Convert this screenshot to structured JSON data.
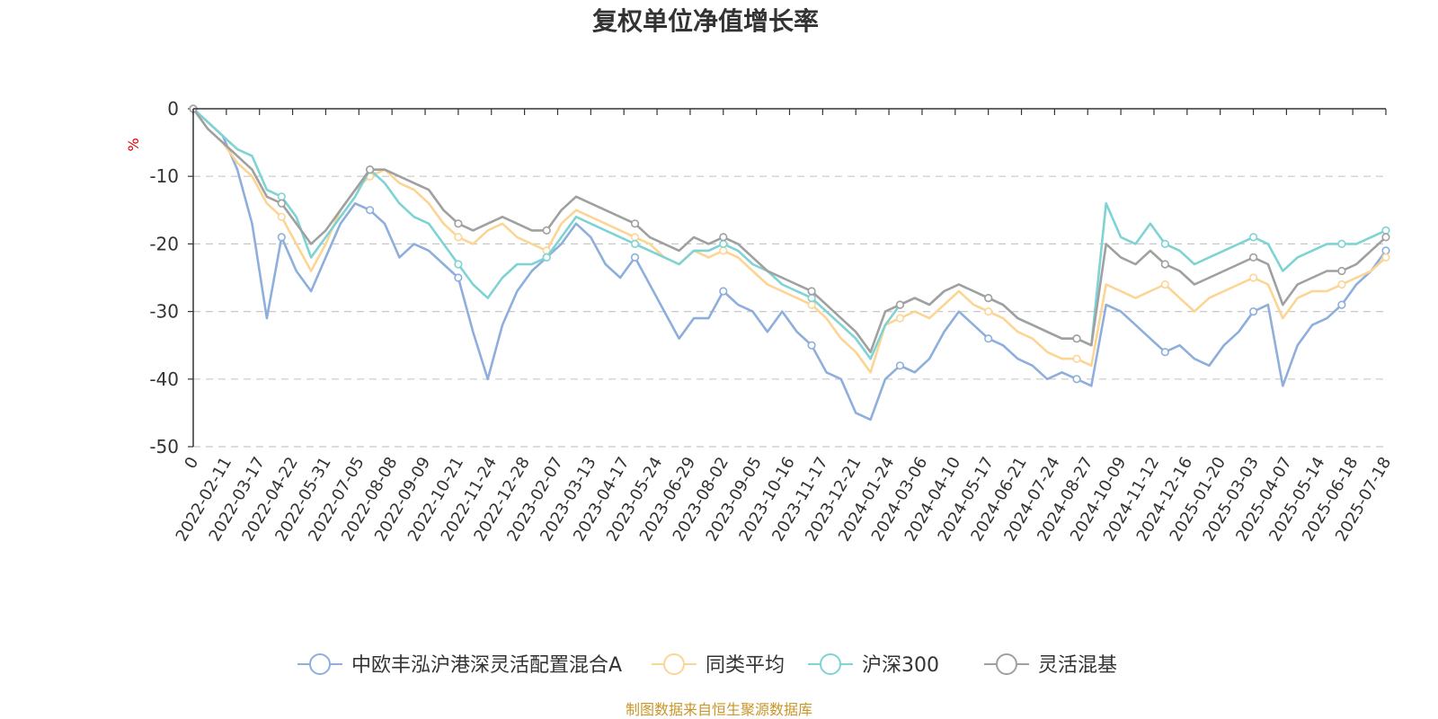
{
  "chart_data": {
    "type": "line",
    "title": "复权单位净值增长率",
    "ylabel": "%",
    "ylim": [
      -50,
      0
    ],
    "yticks": [
      0,
      -10,
      -20,
      -30,
      -40,
      -50
    ],
    "grid": true,
    "legend_position": "bottom",
    "x_tick_labels": [
      "0",
      "2022-02-11",
      "2022-03-17",
      "2022-04-22",
      "2022-05-31",
      "2022-07-05",
      "2022-08-08",
      "2022-09-09",
      "2022-10-21",
      "2022-11-24",
      "2022-12-28",
      "2023-02-07",
      "2023-03-13",
      "2023-04-17",
      "2023-05-24",
      "2023-06-29",
      "2023-08-02",
      "2023-09-05",
      "2023-10-16",
      "2023-11-17",
      "2023-12-21",
      "2024-01-24",
      "2024-03-06",
      "2024-04-10",
      "2024-05-17",
      "2024-06-21",
      "2024-07-24",
      "2024-08-27",
      "2024-10-09",
      "2024-11-12",
      "2024-12-16",
      "2025-01-20",
      "2025-03-03",
      "2025-04-07",
      "2025-05-14",
      "2025-06-18",
      "2025-07-18"
    ],
    "series": [
      {
        "name": "中欧丰泓沪港深灵活配置混合A",
        "color": "#8eaedc",
        "values": [
          0,
          -2,
          -4,
          -9,
          -17,
          -31,
          -19,
          -24,
          -27,
          -22,
          -17,
          -14,
          -15,
          -17,
          -22,
          -20,
          -21,
          -23,
          -25,
          -33,
          -40,
          -32,
          -27,
          -24,
          -22,
          -20,
          -17,
          -19,
          -23,
          -25,
          -22,
          -26,
          -30,
          -34,
          -31,
          -31,
          -27,
          -29,
          -30,
          -33,
          -30,
          -33,
          -35,
          -39,
          -40,
          -45,
          -46,
          -40,
          -38,
          -39,
          -37,
          -33,
          -30,
          -32,
          -34,
          -35,
          -37,
          -38,
          -40,
          -39,
          -40,
          -41,
          -29,
          -30,
          -32,
          -34,
          -36,
          -35,
          -37,
          -38,
          -35,
          -33,
          -30,
          -29,
          -41,
          -35,
          -32,
          -31,
          -29,
          -26,
          -24,
          -21
        ]
      },
      {
        "name": "同类平均",
        "color": "#fcd595",
        "values": [
          0,
          -3,
          -5,
          -8,
          -10,
          -14,
          -16,
          -20,
          -24,
          -20,
          -15,
          -12,
          -10,
          -9,
          -11,
          -12,
          -14,
          -17,
          -19,
          -20,
          -18,
          -17,
          -19,
          -20,
          -21,
          -17,
          -15,
          -16,
          -17,
          -18,
          -19,
          -20,
          -22,
          -23,
          -21,
          -22,
          -21,
          -22,
          -24,
          -26,
          -27,
          -28,
          -29,
          -31,
          -34,
          -36,
          -39,
          -32,
          -31,
          -30,
          -31,
          -29,
          -27,
          -29,
          -30,
          -31,
          -33,
          -34,
          -36,
          -37,
          -37,
          -38,
          -26,
          -27,
          -28,
          -27,
          -26,
          -28,
          -30,
          -28,
          -27,
          -26,
          -25,
          -26,
          -31,
          -28,
          -27,
          -27,
          -26,
          -25,
          -24,
          -22
        ]
      },
      {
        "name": "沪深300",
        "color": "#7ed3d4",
        "values": [
          0,
          -2,
          -4,
          -6,
          -7,
          -12,
          -13,
          -16,
          -22,
          -19,
          -16,
          -13,
          -9,
          -11,
          -14,
          -16,
          -17,
          -20,
          -23,
          -26,
          -28,
          -25,
          -23,
          -23,
          -22,
          -19,
          -16,
          -17,
          -18,
          -19,
          -20,
          -21,
          -22,
          -23,
          -21,
          -21,
          -20,
          -21,
          -23,
          -24,
          -26,
          -27,
          -28,
          -30,
          -32,
          -34,
          -37,
          -32,
          -29,
          -28,
          -29,
          -27,
          -26,
          -27,
          -28,
          -29,
          -31,
          -32,
          -33,
          -34,
          -34,
          -35,
          -14,
          -19,
          -20,
          -17,
          -20,
          -21,
          -23,
          -22,
          -21,
          -20,
          -19,
          -20,
          -24,
          -22,
          -21,
          -20,
          -20,
          -20,
          -19,
          -18
        ]
      },
      {
        "name": "灵活混基",
        "color": "#a0a0a0",
        "values": [
          0,
          -3,
          -5,
          -7,
          -9,
          -13,
          -14,
          -17,
          -20,
          -18,
          -15,
          -12,
          -9,
          -9,
          -10,
          -11,
          -12,
          -15,
          -17,
          -18,
          -17,
          -16,
          -17,
          -18,
          -18,
          -15,
          -13,
          -14,
          -15,
          -16,
          -17,
          -19,
          -20,
          -21,
          -19,
          -20,
          -19,
          -20,
          -22,
          -24,
          -25,
          -26,
          -27,
          -29,
          -31,
          -33,
          -36,
          -30,
          -29,
          -28,
          -29,
          -27,
          -26,
          -27,
          -28,
          -29,
          -31,
          -32,
          -33,
          -34,
          -34,
          -35,
          -20,
          -22,
          -23,
          -21,
          -23,
          -24,
          -26,
          -25,
          -24,
          -23,
          -22,
          -23,
          -29,
          -26,
          -25,
          -24,
          -24,
          -23,
          -21,
          -19
        ]
      }
    ]
  },
  "footer": {
    "source": "制图数据来自恒生聚源数据库"
  }
}
